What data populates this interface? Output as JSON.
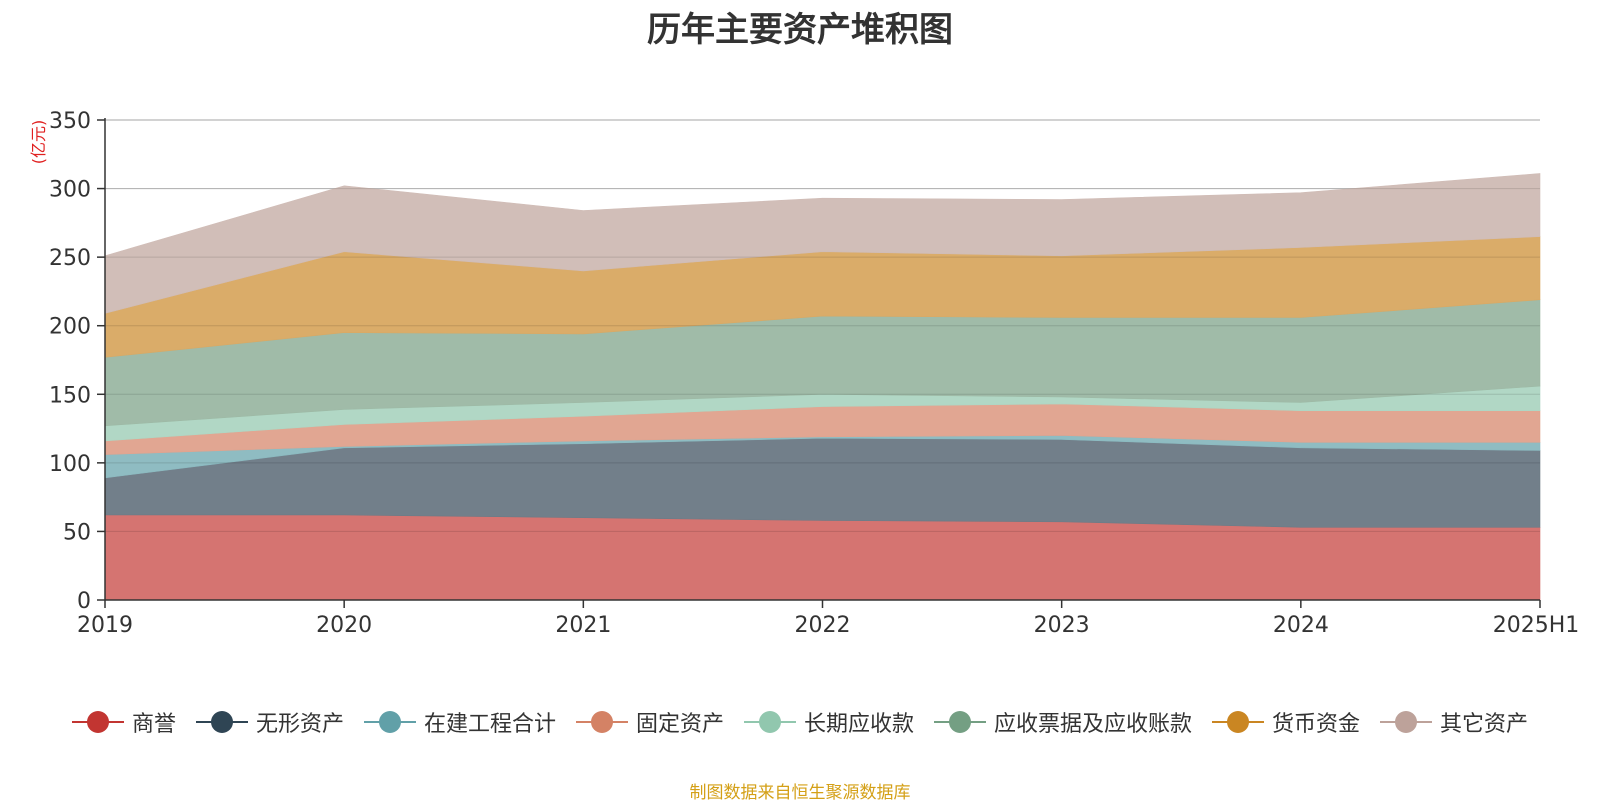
{
  "chart_data": {
    "type": "area",
    "stacked": true,
    "title": "历年主要资产堆积图",
    "unit_label": "(亿元)",
    "categories": [
      "2019",
      "2020",
      "2021",
      "2022",
      "2023",
      "2024",
      "2025H1"
    ],
    "ylim": [
      0,
      350
    ],
    "yticks": [
      0,
      50,
      100,
      150,
      200,
      250,
      300,
      350
    ],
    "grid": true,
    "legend_position": "bottom",
    "series": [
      {
        "name": "商誉",
        "color": "#c23531",
        "fill": "#d4706c",
        "values": [
          62,
          62,
          60,
          58,
          57,
          53,
          53
        ]
      },
      {
        "name": "无形资产",
        "color": "#2f4554",
        "fill": "#6d7b86",
        "values": [
          27,
          49,
          54,
          60,
          60,
          58,
          56
        ]
      },
      {
        "name": "在建工程合计",
        "color": "#61a0a8",
        "fill": "#8bbac0",
        "values": [
          17,
          1,
          2,
          1,
          3,
          4,
          6
        ]
      },
      {
        "name": "固定资产",
        "color": "#d48265",
        "fill": "#e0a38e",
        "values": [
          10,
          16,
          18,
          22,
          23,
          23,
          23
        ]
      },
      {
        "name": "长期应收款",
        "color": "#91c7ae",
        "fill": "#aed6c3",
        "values": [
          11,
          11,
          10,
          9,
          5,
          6,
          18
        ]
      },
      {
        "name": "应收票据及应收账款",
        "color": "#749f83",
        "fill": "#9db9a5",
        "values": [
          50,
          56,
          50,
          57,
          58,
          62,
          63
        ]
      },
      {
        "name": "货币资金",
        "color": "#ca8622",
        "fill": "#d9a964",
        "values": [
          32,
          59,
          46,
          47,
          45,
          51,
          46
        ]
      },
      {
        "name": "其它资产",
        "color": "#bda29a",
        "fill": "#d0bcb6",
        "values": [
          42,
          48,
          44,
          39,
          41,
          40,
          46
        ]
      }
    ]
  },
  "source_note": "制图数据来自恒生聚源数据库"
}
